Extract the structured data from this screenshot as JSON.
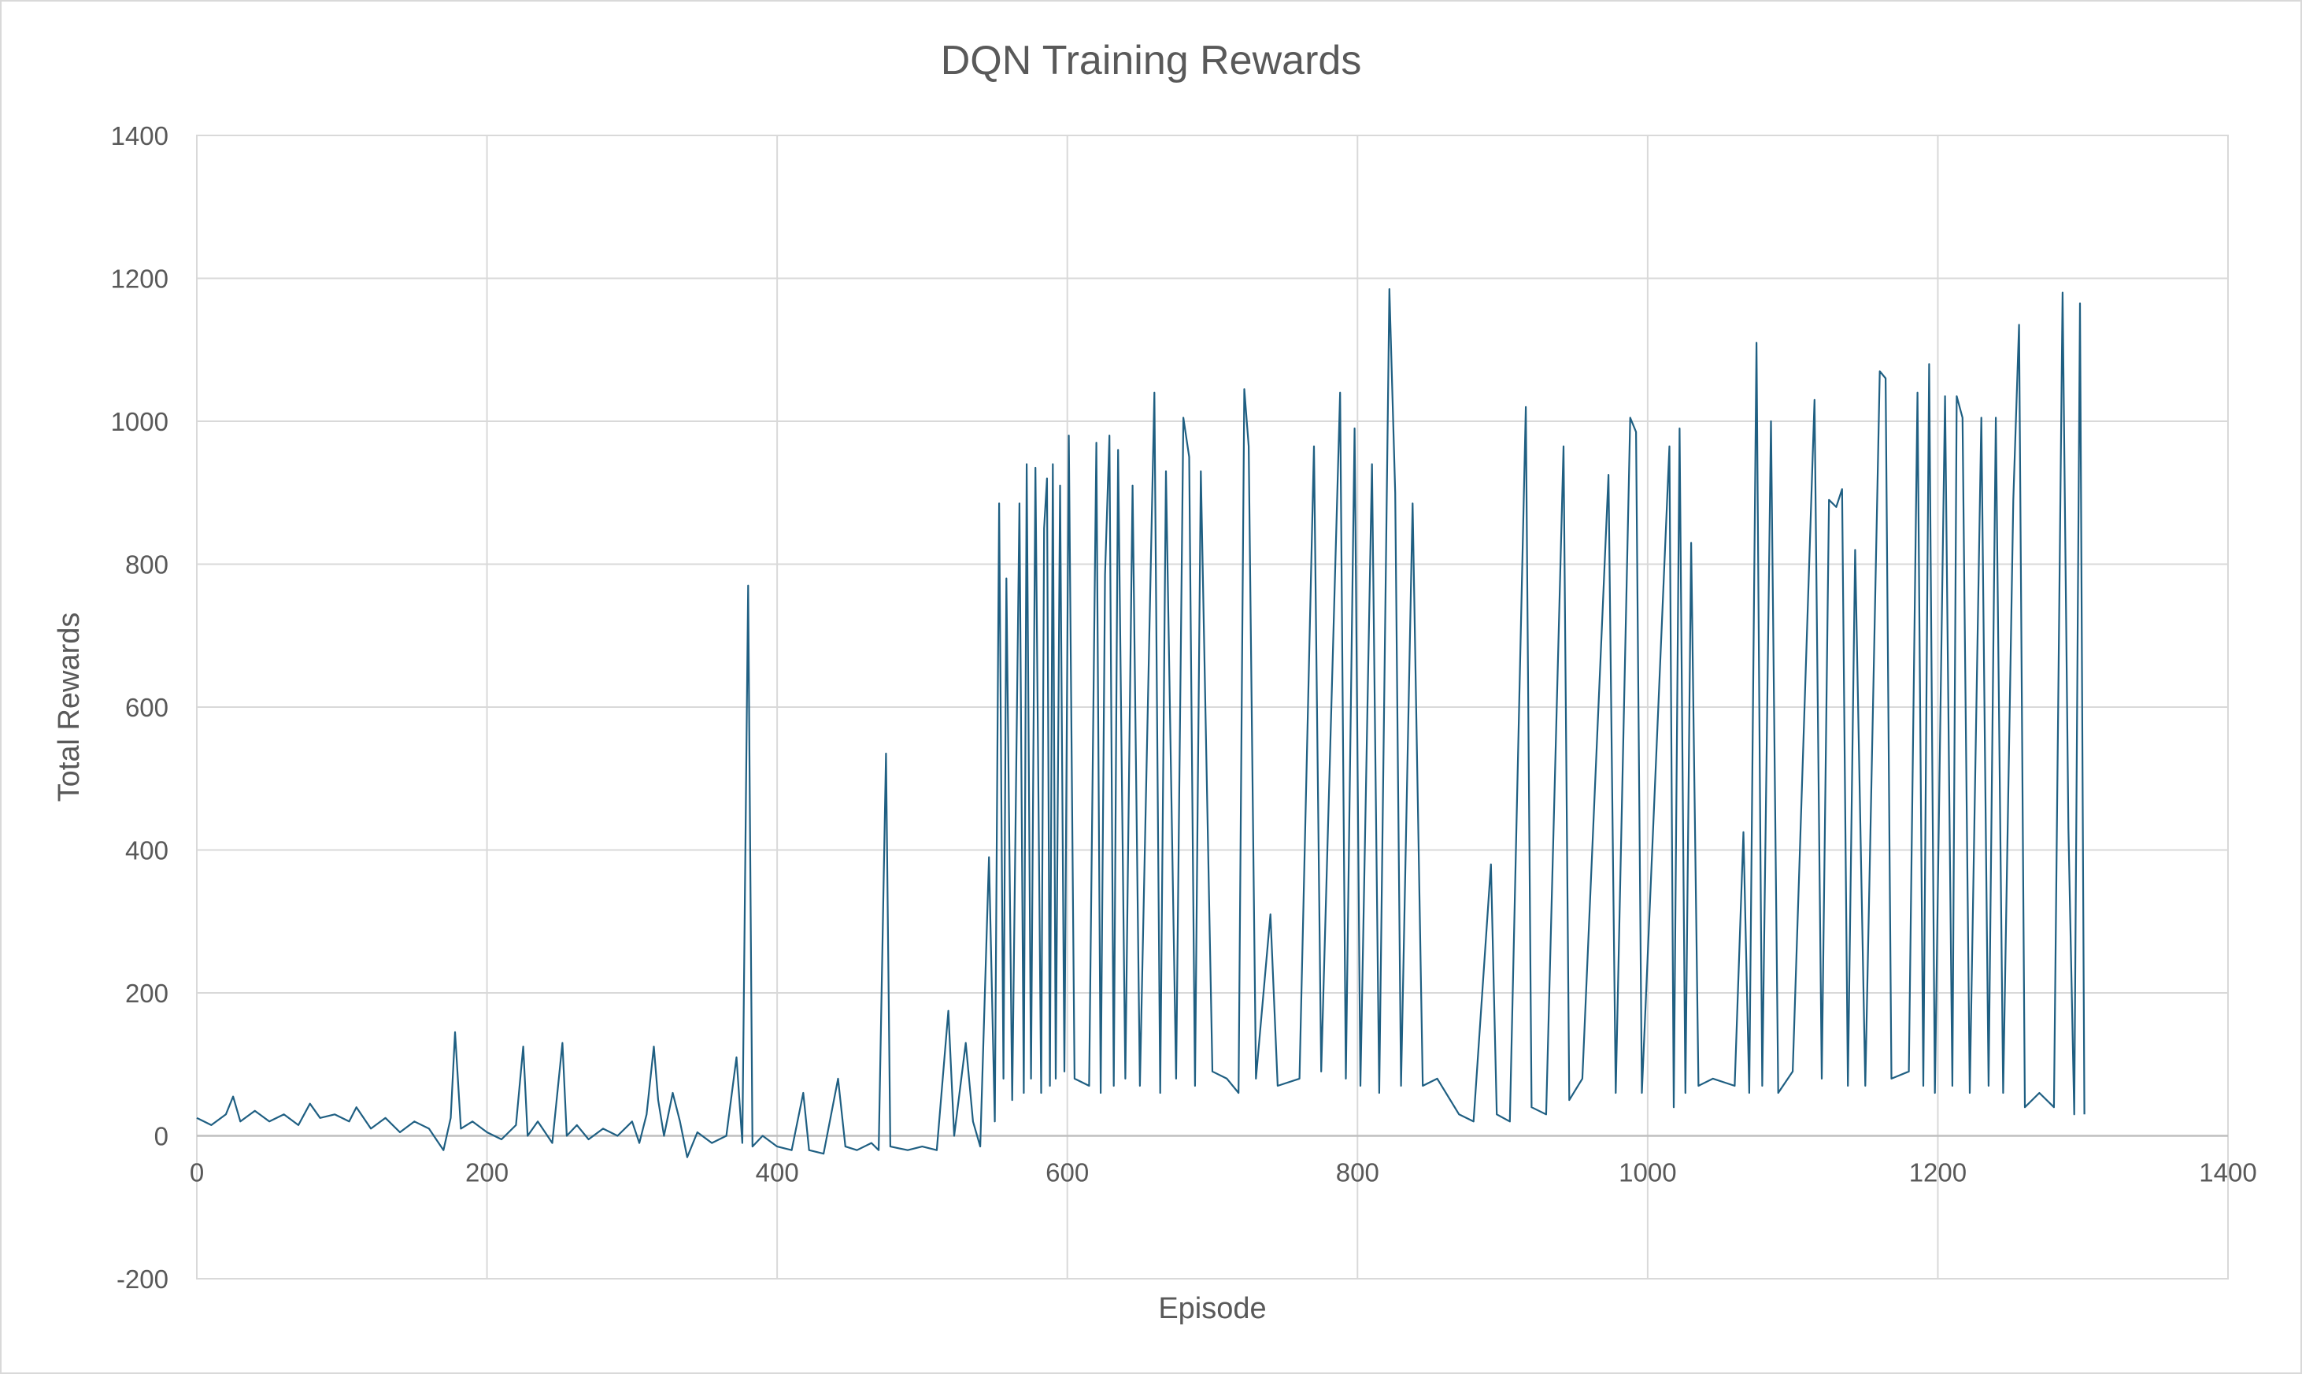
{
  "chart_data": {
    "type": "line",
    "title": "DQN Training Rewards",
    "xlabel": "Episode",
    "ylabel": "Total Rewards",
    "xlim": [
      0,
      1400
    ],
    "ylim": [
      -200,
      1400
    ],
    "x_ticks": [
      "0",
      "200",
      "400",
      "600",
      "800",
      "1000",
      "1200",
      "1400"
    ],
    "y_ticks": [
      "-200",
      "0",
      "200",
      "400",
      "600",
      "800",
      "1000",
      "1200",
      "1400"
    ],
    "grid": true,
    "legend": "none",
    "series_color": "#1f5f82",
    "series": [
      {
        "points": [
          [
            0,
            25
          ],
          [
            10,
            15
          ],
          [
            20,
            30
          ],
          [
            25,
            55
          ],
          [
            30,
            20
          ],
          [
            40,
            35
          ],
          [
            50,
            20
          ],
          [
            60,
            30
          ],
          [
            70,
            15
          ],
          [
            78,
            45
          ],
          [
            85,
            25
          ],
          [
            95,
            30
          ],
          [
            105,
            20
          ],
          [
            110,
            40
          ],
          [
            120,
            10
          ],
          [
            130,
            25
          ],
          [
            140,
            5
          ],
          [
            150,
            20
          ],
          [
            160,
            10
          ],
          [
            170,
            -20
          ],
          [
            175,
            25
          ],
          [
            178,
            145
          ],
          [
            182,
            10
          ],
          [
            190,
            20
          ],
          [
            200,
            5
          ],
          [
            210,
            -5
          ],
          [
            220,
            15
          ],
          [
            225,
            125
          ],
          [
            228,
            0
          ],
          [
            235,
            20
          ],
          [
            245,
            -10
          ],
          [
            252,
            130
          ],
          [
            255,
            0
          ],
          [
            262,
            15
          ],
          [
            270,
            -5
          ],
          [
            280,
            10
          ],
          [
            290,
            0
          ],
          [
            300,
            20
          ],
          [
            305,
            -10
          ],
          [
            310,
            30
          ],
          [
            315,
            125
          ],
          [
            318,
            50
          ],
          [
            322,
            0
          ],
          [
            328,
            60
          ],
          [
            333,
            20
          ],
          [
            338,
            -30
          ],
          [
            345,
            5
          ],
          [
            355,
            -10
          ],
          [
            365,
            0
          ],
          [
            372,
            110
          ],
          [
            376,
            -10
          ],
          [
            380,
            770
          ],
          [
            383,
            -15
          ],
          [
            390,
            0
          ],
          [
            400,
            -15
          ],
          [
            410,
            -20
          ],
          [
            418,
            60
          ],
          [
            422,
            -20
          ],
          [
            432,
            -25
          ],
          [
            442,
            80
          ],
          [
            447,
            -15
          ],
          [
            455,
            -20
          ],
          [
            465,
            -10
          ],
          [
            470,
            -20
          ],
          [
            475,
            535
          ],
          [
            478,
            -15
          ],
          [
            490,
            -20
          ],
          [
            500,
            -15
          ],
          [
            510,
            -20
          ],
          [
            518,
            175
          ],
          [
            522,
            0
          ],
          [
            530,
            130
          ],
          [
            535,
            20
          ],
          [
            540,
            -15
          ],
          [
            546,
            390
          ],
          [
            550,
            20
          ],
          [
            553,
            885
          ],
          [
            556,
            80
          ],
          [
            558,
            780
          ],
          [
            562,
            50
          ],
          [
            567,
            885
          ],
          [
            570,
            60
          ],
          [
            572,
            940
          ],
          [
            575,
            80
          ],
          [
            578,
            935
          ],
          [
            582,
            60
          ],
          [
            584,
            850
          ],
          [
            586,
            920
          ],
          [
            588,
            70
          ],
          [
            590,
            940
          ],
          [
            592,
            80
          ],
          [
            595,
            910
          ],
          [
            598,
            90
          ],
          [
            601,
            980
          ],
          [
            605,
            80
          ],
          [
            615,
            70
          ],
          [
            620,
            970
          ],
          [
            623,
            60
          ],
          [
            626,
            785
          ],
          [
            629,
            980
          ],
          [
            632,
            70
          ],
          [
            635,
            960
          ],
          [
            640,
            80
          ],
          [
            645,
            910
          ],
          [
            650,
            70
          ],
          [
            660,
            1040
          ],
          [
            664,
            60
          ],
          [
            668,
            930
          ],
          [
            675,
            80
          ],
          [
            680,
            1005
          ],
          [
            684,
            950
          ],
          [
            688,
            70
          ],
          [
            692,
            930
          ],
          [
            700,
            90
          ],
          [
            710,
            80
          ],
          [
            718,
            60
          ],
          [
            722,
            1045
          ],
          [
            725,
            965
          ],
          [
            730,
            80
          ],
          [
            740,
            310
          ],
          [
            745,
            70
          ],
          [
            760,
            80
          ],
          [
            770,
            965
          ],
          [
            775,
            90
          ],
          [
            788,
            1040
          ],
          [
            792,
            80
          ],
          [
            798,
            990
          ],
          [
            802,
            70
          ],
          [
            810,
            940
          ],
          [
            815,
            60
          ],
          [
            822,
            1185
          ],
          [
            826,
            900
          ],
          [
            830,
            70
          ],
          [
            838,
            885
          ],
          [
            845,
            70
          ],
          [
            855,
            80
          ],
          [
            870,
            30
          ],
          [
            880,
            20
          ],
          [
            892,
            380
          ],
          [
            896,
            30
          ],
          [
            905,
            20
          ],
          [
            916,
            1020
          ],
          [
            920,
            40
          ],
          [
            930,
            30
          ],
          [
            942,
            965
          ],
          [
            946,
            50
          ],
          [
            955,
            80
          ],
          [
            973,
            925
          ],
          [
            978,
            60
          ],
          [
            988,
            1005
          ],
          [
            992,
            985
          ],
          [
            996,
            60
          ],
          [
            1015,
            965
          ],
          [
            1018,
            40
          ],
          [
            1022,
            990
          ],
          [
            1026,
            60
          ],
          [
            1030,
            830
          ],
          [
            1035,
            70
          ],
          [
            1045,
            80
          ],
          [
            1060,
            70
          ],
          [
            1066,
            425
          ],
          [
            1070,
            60
          ],
          [
            1075,
            1110
          ],
          [
            1079,
            70
          ],
          [
            1085,
            1000
          ],
          [
            1090,
            60
          ],
          [
            1100,
            90
          ],
          [
            1115,
            1030
          ],
          [
            1120,
            80
          ],
          [
            1125,
            890
          ],
          [
            1130,
            880
          ],
          [
            1134,
            905
          ],
          [
            1138,
            70
          ],
          [
            1143,
            820
          ],
          [
            1150,
            70
          ],
          [
            1160,
            1070
          ],
          [
            1164,
            1060
          ],
          [
            1168,
            80
          ],
          [
            1180,
            90
          ],
          [
            1186,
            1040
          ],
          [
            1190,
            70
          ],
          [
            1194,
            1080
          ],
          [
            1198,
            60
          ],
          [
            1205,
            1035
          ],
          [
            1210,
            70
          ],
          [
            1213,
            1035
          ],
          [
            1217,
            1005
          ],
          [
            1222,
            60
          ],
          [
            1230,
            1005
          ],
          [
            1235,
            70
          ],
          [
            1240,
            1005
          ],
          [
            1245,
            60
          ],
          [
            1252,
            890
          ],
          [
            1256,
            1135
          ],
          [
            1260,
            40
          ],
          [
            1270,
            60
          ],
          [
            1280,
            40
          ],
          [
            1286,
            1180
          ],
          [
            1290,
            430
          ],
          [
            1294,
            30
          ],
          [
            1298,
            1165
          ],
          [
            1301,
            30
          ]
        ]
      }
    ]
  }
}
